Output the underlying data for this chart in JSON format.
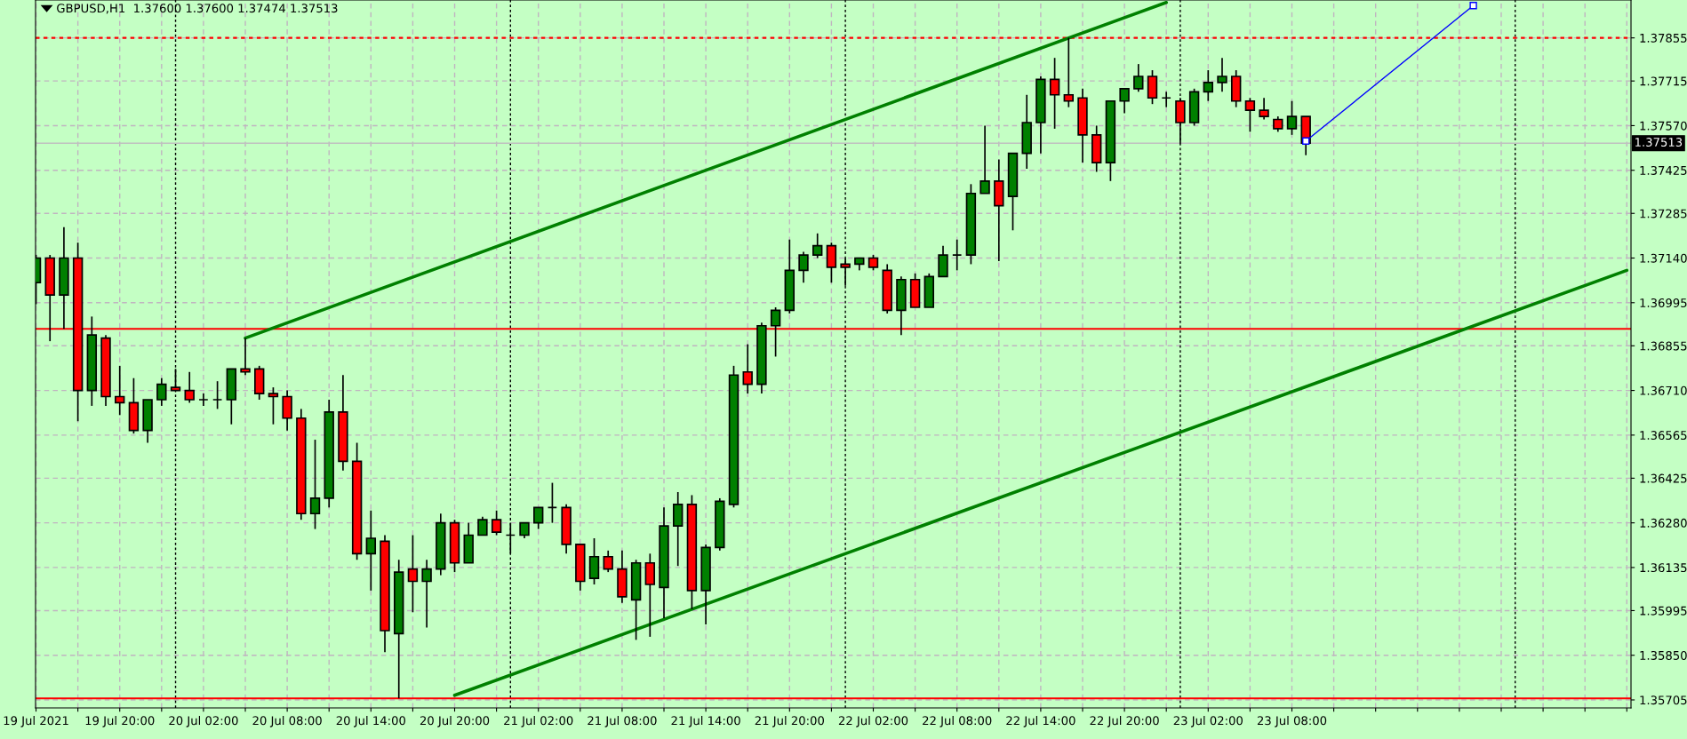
{
  "chart_data": {
    "type": "candlestick",
    "title": "GBPUSD,H1  1.37600 1.37600 1.37474 1.37513",
    "x": [
      "2021-07-19T14:00",
      "2021-07-19T15:00",
      "2021-07-19T16:00",
      "2021-07-19T17:00",
      "2021-07-19T18:00",
      "2021-07-19T19:00",
      "2021-07-19T20:00",
      "2021-07-19T21:00",
      "2021-07-19T22:00",
      "2021-07-19T23:00",
      "2021-07-20T00:00",
      "2021-07-20T01:00",
      "2021-07-20T02:00",
      "2021-07-20T03:00",
      "2021-07-20T04:00",
      "2021-07-20T05:00",
      "2021-07-20T06:00",
      "2021-07-20T07:00",
      "2021-07-20T08:00",
      "2021-07-20T09:00",
      "2021-07-20T10:00",
      "2021-07-20T11:00",
      "2021-07-20T12:00",
      "2021-07-20T13:00",
      "2021-07-20T14:00",
      "2021-07-20T15:00",
      "2021-07-20T16:00",
      "2021-07-20T17:00",
      "2021-07-20T18:00",
      "2021-07-20T19:00",
      "2021-07-20T20:00",
      "2021-07-20T21:00",
      "2021-07-20T22:00",
      "2021-07-20T23:00",
      "2021-07-21T00:00",
      "2021-07-21T01:00",
      "2021-07-21T02:00",
      "2021-07-21T03:00",
      "2021-07-21T04:00",
      "2021-07-21T05:00",
      "2021-07-21T06:00",
      "2021-07-21T07:00",
      "2021-07-21T08:00",
      "2021-07-21T09:00",
      "2021-07-21T10:00",
      "2021-07-21T11:00",
      "2021-07-21T12:00",
      "2021-07-21T13:00",
      "2021-07-21T14:00",
      "2021-07-21T15:00",
      "2021-07-21T16:00",
      "2021-07-21T17:00",
      "2021-07-21T18:00",
      "2021-07-21T19:00",
      "2021-07-21T20:00",
      "2021-07-21T21:00",
      "2021-07-21T22:00",
      "2021-07-21T23:00",
      "2021-07-22T00:00",
      "2021-07-22T01:00",
      "2021-07-22T02:00",
      "2021-07-22T03:00",
      "2021-07-22T04:00",
      "2021-07-22T05:00",
      "2021-07-22T06:00",
      "2021-07-22T07:00",
      "2021-07-22T08:00",
      "2021-07-22T09:00",
      "2021-07-22T10:00",
      "2021-07-22T11:00",
      "2021-07-22T12:00",
      "2021-07-22T13:00",
      "2021-07-22T14:00",
      "2021-07-22T15:00",
      "2021-07-22T16:00",
      "2021-07-22T17:00",
      "2021-07-22T18:00",
      "2021-07-22T19:00",
      "2021-07-22T20:00",
      "2021-07-22T21:00",
      "2021-07-22T22:00",
      "2021-07-22T23:00",
      "2021-07-23T00:00",
      "2021-07-23T01:00",
      "2021-07-23T02:00",
      "2021-07-23T03:00",
      "2021-07-23T04:00",
      "2021-07-23T05:00",
      "2021-07-23T06:00",
      "2021-07-23T07:00",
      "2021-07-23T08:00",
      "2021-07-23T09:00"
    ],
    "ohlc": [
      [
        1.3706,
        1.3715,
        1.3699,
        1.3714
      ],
      [
        1.3714,
        1.3715,
        1.3687,
        1.3702
      ],
      [
        1.3702,
        1.3724,
        1.3691,
        1.3714
      ],
      [
        1.3714,
        1.3719,
        1.3661,
        1.3671
      ],
      [
        1.3671,
        1.3695,
        1.3666,
        1.3689
      ],
      [
        1.3688,
        1.3689,
        1.3666,
        1.3669
      ],
      [
        1.3669,
        1.3679,
        1.3663,
        1.3667
      ],
      [
        1.3667,
        1.3675,
        1.3657,
        1.3658
      ],
      [
        1.3658,
        1.3668,
        1.3654,
        1.3668
      ],
      [
        1.3668,
        1.3675,
        1.3666,
        1.3673
      ],
      [
        1.3672,
        1.3678,
        1.3671,
        1.3671
      ],
      [
        1.3671,
        1.3677,
        1.3667,
        1.3668
      ],
      [
        1.3668,
        1.367,
        1.3666,
        1.3668
      ],
      [
        1.3668,
        1.3674,
        1.3665,
        1.3668
      ],
      [
        1.3668,
        1.3678,
        1.366,
        1.3678
      ],
      [
        1.3678,
        1.3688,
        1.3676,
        1.3677
      ],
      [
        1.3678,
        1.3679,
        1.3668,
        1.367
      ],
      [
        1.367,
        1.3672,
        1.366,
        1.3669
      ],
      [
        1.3669,
        1.3671,
        1.3658,
        1.3662
      ],
      [
        1.3662,
        1.3665,
        1.3629,
        1.3631
      ],
      [
        1.3631,
        1.3655,
        1.3626,
        1.3636
      ],
      [
        1.3636,
        1.3668,
        1.3633,
        1.3664
      ],
      [
        1.3664,
        1.3676,
        1.3645,
        1.3648
      ],
      [
        1.3648,
        1.3654,
        1.3616,
        1.3618
      ],
      [
        1.3618,
        1.3632,
        1.3606,
        1.3623
      ],
      [
        1.3622,
        1.3624,
        1.3586,
        1.3593
      ],
      [
        1.3592,
        1.3616,
        1.3571,
        1.3612
      ],
      [
        1.3613,
        1.3624,
        1.3599,
        1.3609
      ],
      [
        1.3609,
        1.3616,
        1.3594,
        1.3613
      ],
      [
        1.3613,
        1.3631,
        1.3611,
        1.3628
      ],
      [
        1.3628,
        1.3629,
        1.3612,
        1.3615
      ],
      [
        1.3615,
        1.3628,
        1.3615,
        1.3624
      ],
      [
        1.3624,
        1.363,
        1.3624,
        1.3629
      ],
      [
        1.3629,
        1.3632,
        1.3624,
        1.3625
      ],
      [
        1.3624,
        1.3628,
        1.3618,
        1.3624
      ],
      [
        1.3624,
        1.3628,
        1.3623,
        1.3628
      ],
      [
        1.3628,
        1.3633,
        1.3626,
        1.3633
      ],
      [
        1.3633,
        1.3641,
        1.3628,
        1.3633
      ],
      [
        1.3633,
        1.3634,
        1.3618,
        1.3621
      ],
      [
        1.3621,
        1.3621,
        1.3606,
        1.3609
      ],
      [
        1.361,
        1.3623,
        1.3608,
        1.3617
      ],
      [
        1.3617,
        1.3619,
        1.3612,
        1.3613
      ],
      [
        1.3613,
        1.3619,
        1.3602,
        1.3604
      ],
      [
        1.3603,
        1.3616,
        1.359,
        1.3615
      ],
      [
        1.3615,
        1.3618,
        1.3591,
        1.3608
      ],
      [
        1.3607,
        1.3633,
        1.3597,
        1.3627
      ],
      [
        1.3627,
        1.3638,
        1.3614,
        1.3634
      ],
      [
        1.3634,
        1.3637,
        1.36,
        1.3606
      ],
      [
        1.3606,
        1.3621,
        1.3595,
        1.362
      ],
      [
        1.362,
        1.3636,
        1.3619,
        1.3635
      ],
      [
        1.3634,
        1.3679,
        1.3633,
        1.3676
      ],
      [
        1.3677,
        1.3686,
        1.367,
        1.3673
      ],
      [
        1.3673,
        1.3693,
        1.367,
        1.3692
      ],
      [
        1.3692,
        1.3698,
        1.3682,
        1.3697
      ],
      [
        1.3697,
        1.372,
        1.3696,
        1.371
      ],
      [
        1.371,
        1.3716,
        1.3706,
        1.3715
      ],
      [
        1.3715,
        1.3722,
        1.3714,
        1.3718
      ],
      [
        1.3718,
        1.3719,
        1.3706,
        1.3711
      ],
      [
        1.3712,
        1.3714,
        1.3705,
        1.3711
      ],
      [
        1.3712,
        1.3714,
        1.371,
        1.3714
      ],
      [
        1.3714,
        1.3715,
        1.371,
        1.3711
      ],
      [
        1.371,
        1.3712,
        1.3696,
        1.3697
      ],
      [
        1.3697,
        1.3708,
        1.3689,
        1.3707
      ],
      [
        1.3707,
        1.3709,
        1.3698,
        1.3698
      ],
      [
        1.3698,
        1.3709,
        1.3698,
        1.3708
      ],
      [
        1.3708,
        1.3718,
        1.3708,
        1.3715
      ],
      [
        1.3715,
        1.372,
        1.371,
        1.3715
      ],
      [
        1.3715,
        1.3738,
        1.3712,
        1.3735
      ],
      [
        1.3735,
        1.3757,
        1.3735,
        1.3739
      ],
      [
        1.3739,
        1.3746,
        1.3713,
        1.3731
      ],
      [
        1.3734,
        1.3748,
        1.3723,
        1.3748
      ],
      [
        1.3748,
        1.3767,
        1.3743,
        1.3758
      ],
      [
        1.3758,
        1.3773,
        1.3748,
        1.3772
      ],
      [
        1.3772,
        1.3779,
        1.3756,
        1.3767
      ],
      [
        1.3767,
        1.37855,
        1.3763,
        1.3765
      ],
      [
        1.3766,
        1.3769,
        1.3745,
        1.3754
      ],
      [
        1.3754,
        1.3757,
        1.3742,
        1.3745
      ],
      [
        1.3745,
        1.3765,
        1.3739,
        1.3765
      ],
      [
        1.3765,
        1.3769,
        1.3761,
        1.3769
      ],
      [
        1.3769,
        1.3777,
        1.3768,
        1.3773
      ],
      [
        1.3773,
        1.3775,
        1.3764,
        1.3766
      ],
      [
        1.3766,
        1.3768,
        1.3763,
        1.3766
      ],
      [
        1.3765,
        1.3766,
        1.3751,
        1.3758
      ],
      [
        1.3758,
        1.3769,
        1.3757,
        1.3768
      ],
      [
        1.3768,
        1.3775,
        1.3765,
        1.3771
      ],
      [
        1.3771,
        1.3779,
        1.3768,
        1.3773
      ],
      [
        1.3773,
        1.3775,
        1.3763,
        1.3765
      ],
      [
        1.3765,
        1.3766,
        1.3755,
        1.3762
      ],
      [
        1.3762,
        1.3766,
        1.3759,
        1.376
      ],
      [
        1.3759,
        1.376,
        1.3755,
        1.3756
      ],
      [
        1.3756,
        1.3765,
        1.3754,
        1.376
      ],
      [
        1.376,
        1.376,
        1.37474,
        1.37513
      ]
    ],
    "series": [
      {
        "type": "line",
        "color": "#008000",
        "x": [
          "2021-07-20T05:00",
          "2021-07-22T23:00"
        ],
        "values": [
          1.3688,
          1.3797
        ]
      },
      {
        "type": "line",
        "color": "#008000",
        "x": [
          "2021-07-20T20:00",
          "2021-07-24T08:00"
        ],
        "values": [
          1.3572,
          1.371
        ]
      },
      {
        "type": "line",
        "color": "#0000ff",
        "marker": "square",
        "x": [
          "2021-07-23T09:00",
          "2021-07-23T21:00"
        ],
        "values": [
          1.3752,
          1.3796
        ]
      }
    ],
    "ref_lines": [
      {
        "axis": "y",
        "value": 1.37855,
        "color": "#ff0000",
        "line_style": "dotted"
      },
      {
        "axis": "y",
        "value": 1.3691,
        "color": "#ff0000",
        "line_style": "solid"
      },
      {
        "axis": "y",
        "value": 1.3571,
        "color": "#ff0000",
        "line_style": "solid"
      },
      {
        "axis": "y",
        "value": 1.37513,
        "label": "1.37513",
        "color": "#c0c0c0",
        "line_style": "solid"
      },
      {
        "axis": "x",
        "value": "2021-07-20T00:00",
        "color": "#000000",
        "line_style": "dotted"
      },
      {
        "axis": "x",
        "value": "2021-07-21T00:00",
        "color": "#000000",
        "line_style": "dotted"
      },
      {
        "axis": "x",
        "value": "2021-07-22T00:00",
        "color": "#000000",
        "line_style": "dotted"
      },
      {
        "axis": "x",
        "value": "2021-07-23T00:00",
        "color": "#000000",
        "line_style": "dotted"
      },
      {
        "axis": "x",
        "value": "2021-07-24T00:00",
        "color": "#000000",
        "line_style": "dotted"
      }
    ],
    "xlim": [
      "2021-07-19T13:58",
      "2021-07-24T08:18"
    ],
    "ylim": [
      1.35679,
      1.37978
    ],
    "xticks": [
      {
        "value": "2021-07-19T14:00",
        "label": "19 Jul 2021"
      },
      {
        "value": "2021-07-19T17:00",
        "label": null
      },
      {
        "value": "2021-07-19T20:00",
        "label": "19 Jul 20:00"
      },
      {
        "value": "2021-07-19T23:00",
        "label": null
      },
      {
        "value": "2021-07-20T02:00",
        "label": "20 Jul 02:00"
      },
      {
        "value": "2021-07-20T05:00",
        "label": null
      },
      {
        "value": "2021-07-20T08:00",
        "label": "20 Jul 08:00"
      },
      {
        "value": "2021-07-20T11:00",
        "label": null
      },
      {
        "value": "2021-07-20T14:00",
        "label": "20 Jul 14:00"
      },
      {
        "value": "2021-07-20T17:00",
        "label": null
      },
      {
        "value": "2021-07-20T20:00",
        "label": "20 Jul 20:00"
      },
      {
        "value": "2021-07-20T23:00",
        "label": null
      },
      {
        "value": "2021-07-21T02:00",
        "label": "21 Jul 02:00"
      },
      {
        "value": "2021-07-21T05:00",
        "label": null
      },
      {
        "value": "2021-07-21T08:00",
        "label": "21 Jul 08:00"
      },
      {
        "value": "2021-07-21T11:00",
        "label": null
      },
      {
        "value": "2021-07-21T14:00",
        "label": "21 Jul 14:00"
      },
      {
        "value": "2021-07-21T17:00",
        "label": null
      },
      {
        "value": "2021-07-21T20:00",
        "label": "21 Jul 20:00"
      },
      {
        "value": "2021-07-21T23:00",
        "label": null
      },
      {
        "value": "2021-07-22T02:00",
        "label": "22 Jul 02:00"
      },
      {
        "value": "2021-07-22T05:00",
        "label": null
      },
      {
        "value": "2021-07-22T08:00",
        "label": "22 Jul 08:00"
      },
      {
        "value": "2021-07-22T11:00",
        "label": null
      },
      {
        "value": "2021-07-22T14:00",
        "label": "22 Jul 14:00"
      },
      {
        "value": "2021-07-22T17:00",
        "label": null
      },
      {
        "value": "2021-07-22T20:00",
        "label": "22 Jul 20:00"
      },
      {
        "value": "2021-07-22T23:00",
        "label": null
      },
      {
        "value": "2021-07-23T02:00",
        "label": "23 Jul 02:00"
      },
      {
        "value": "2021-07-23T05:00",
        "label": null
      },
      {
        "value": "2021-07-23T08:00",
        "label": "23 Jul 08:00"
      },
      {
        "value": "2021-07-23T11:00",
        "label": null
      },
      {
        "value": "2021-07-23T14:00",
        "label": null
      },
      {
        "value": "2021-07-23T17:00",
        "label": null
      },
      {
        "value": "2021-07-23T20:00",
        "label": null
      },
      {
        "value": "2021-07-23T23:00",
        "label": null
      },
      {
        "value": "2021-07-24T02:00",
        "label": null
      },
      {
        "value": "2021-07-24T05:00",
        "label": null
      },
      {
        "value": "2021-07-24T08:00",
        "label": null
      }
    ],
    "yticks": [
      1.37855,
      1.37715,
      {
        "value": 1.3757,
        "label": "1.37570"
      },
      1.37425,
      1.37285,
      {
        "value": 1.3714,
        "label": "1.37140"
      },
      1.36995,
      1.36855,
      {
        "value": 1.3671,
        "label": "1.36710"
      },
      1.36565,
      1.36425,
      {
        "value": 1.3628,
        "label": "1.36280"
      },
      1.36135,
      1.35995,
      {
        "value": 1.3585,
        "label": "1.35850"
      },
      1.35705
    ],
    "grid": true
  }
}
